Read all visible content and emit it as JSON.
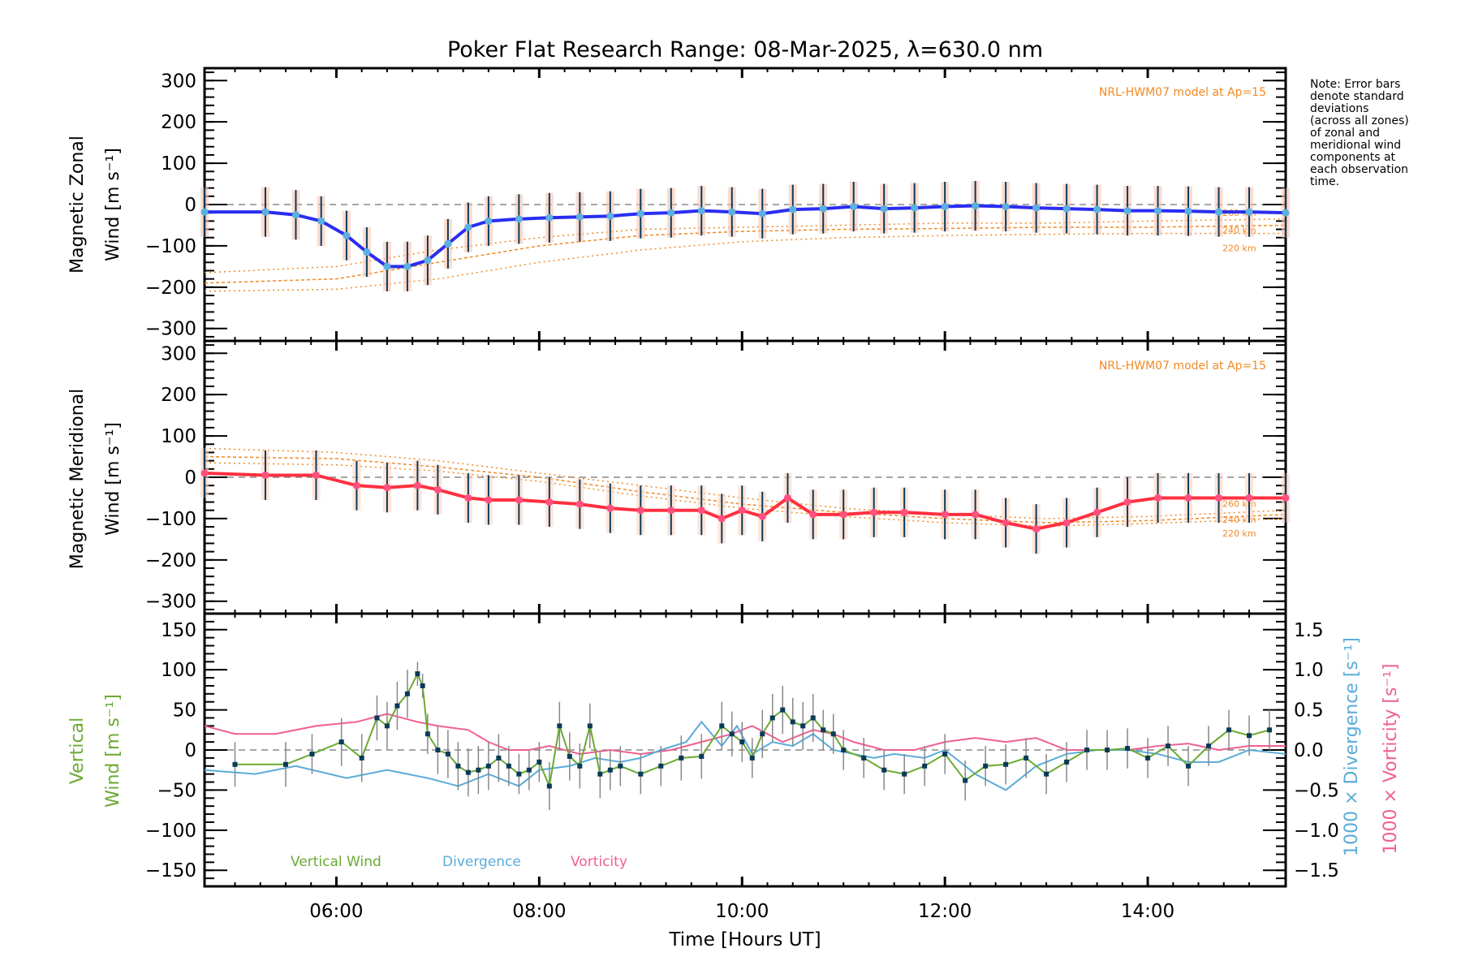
{
  "chart_data": [
    {
      "type": "line",
      "panel": "zonal",
      "title": "Poker Flat Research Range: 08-Mar-2025, λ=630.0 nm",
      "ylabel_line1": "Magnetic Zonal",
      "ylabel_line2": "Wind [m s⁻¹]",
      "ylim": [
        -330,
        330
      ],
      "yticks": [
        -300,
        -200,
        -100,
        0,
        100,
        200,
        300
      ],
      "xlim": [
        4.7,
        15.36
      ],
      "model_label": "NRL-HWM07 model at Ap=15",
      "series": [
        {
          "name": "Zonal wind",
          "color": "#2a2df0",
          "x": [
            4.7,
            5.3,
            5.6,
            5.85,
            6.1,
            6.3,
            6.5,
            6.7,
            6.9,
            7.1,
            7.3,
            7.5,
            7.8,
            8.1,
            8.4,
            8.7,
            9.0,
            9.3,
            9.6,
            9.9,
            10.2,
            10.5,
            10.8,
            11.1,
            11.4,
            11.7,
            12.0,
            12.3,
            12.6,
            12.9,
            13.2,
            13.5,
            13.8,
            14.1,
            14.4,
            14.7,
            15.0,
            15.36
          ],
          "y": [
            -18,
            -18,
            -25,
            -40,
            -75,
            -115,
            -150,
            -150,
            -135,
            -95,
            -55,
            -40,
            -35,
            -32,
            -30,
            -28,
            -22,
            -20,
            -15,
            -18,
            -22,
            -12,
            -10,
            -5,
            -10,
            -8,
            -5,
            -3,
            -5,
            -8,
            -10,
            -12,
            -15,
            -15,
            -16,
            -18,
            -18,
            -20
          ]
        }
      ],
      "model_curves": [
        {
          "name": "260 km",
          "x": [
            4.7,
            6.0,
            7.0,
            8.0,
            9.0,
            10.0,
            11.0,
            12.0,
            13.0,
            14.0,
            15.36
          ],
          "y": [
            -165,
            -150,
            -110,
            -80,
            -60,
            -55,
            -50,
            -45,
            -45,
            -40,
            -35
          ]
        },
        {
          "name": "240 km",
          "x": [
            4.7,
            6.0,
            7.0,
            8.0,
            9.0,
            10.0,
            11.0,
            12.0,
            13.0,
            14.0,
            15.36
          ],
          "y": [
            -190,
            -180,
            -140,
            -100,
            -75,
            -65,
            -60,
            -58,
            -55,
            -55,
            -50
          ]
        },
        {
          "name": "220 km",
          "x": [
            4.7,
            6.0,
            7.0,
            8.0,
            9.0,
            10.0,
            11.0,
            12.0,
            13.0,
            14.0,
            15.36
          ],
          "y": [
            -210,
            -205,
            -180,
            -140,
            -110,
            -90,
            -80,
            -75,
            -72,
            -70,
            -70
          ]
        }
      ]
    },
    {
      "type": "line",
      "panel": "meridional",
      "ylabel_line1": "Magnetic Meridional",
      "ylabel_line2": "Wind [m s⁻¹]",
      "ylim": [
        -330,
        330
      ],
      "yticks": [
        -300,
        -200,
        -100,
        0,
        100,
        200,
        300
      ],
      "xlim": [
        4.7,
        15.36
      ],
      "model_label": "NRL-HWM07 model at Ap=15",
      "series": [
        {
          "name": "Meridional wind",
          "color": "#ff3040",
          "x": [
            4.7,
            5.3,
            5.8,
            6.2,
            6.5,
            6.8,
            7.0,
            7.3,
            7.5,
            7.8,
            8.1,
            8.4,
            8.7,
            9.0,
            9.3,
            9.6,
            9.8,
            10.0,
            10.2,
            10.45,
            10.7,
            11.0,
            11.3,
            11.6,
            12.0,
            12.3,
            12.6,
            12.9,
            13.2,
            13.5,
            13.8,
            14.1,
            14.4,
            14.7,
            15.0,
            15.36
          ],
          "y": [
            10,
            5,
            5,
            -20,
            -25,
            -20,
            -30,
            -50,
            -55,
            -55,
            -60,
            -65,
            -75,
            -80,
            -80,
            -80,
            -100,
            -80,
            -95,
            -50,
            -90,
            -90,
            -85,
            -85,
            -90,
            -90,
            -110,
            -125,
            -110,
            -85,
            -60,
            -50,
            -50,
            -50,
            -50,
            -50
          ]
        }
      ],
      "model_curves": [
        {
          "name": "260 km",
          "x": [
            4.7,
            6.0,
            7.0,
            8.0,
            9.0,
            10.0,
            11.0,
            12.0,
            13.0,
            14.0,
            15.36
          ],
          "y": [
            70,
            60,
            40,
            10,
            -20,
            -50,
            -75,
            -90,
            -100,
            -95,
            -80
          ]
        },
        {
          "name": "240 km",
          "x": [
            4.7,
            6.0,
            7.0,
            8.0,
            9.0,
            10.0,
            11.0,
            12.0,
            13.0,
            14.0,
            15.36
          ],
          "y": [
            50,
            45,
            25,
            0,
            -35,
            -65,
            -85,
            -100,
            -110,
            -105,
            -90
          ]
        },
        {
          "name": "220 km",
          "x": [
            4.7,
            6.0,
            7.0,
            8.0,
            9.0,
            10.0,
            11.0,
            12.0,
            13.0,
            14.0,
            15.36
          ],
          "y": [
            35,
            30,
            15,
            -10,
            -45,
            -75,
            -95,
            -110,
            -118,
            -112,
            -100
          ]
        }
      ]
    },
    {
      "type": "line",
      "panel": "vertical",
      "xlabel": "Time [Hours UT]",
      "ylabel_line1": "Vertical",
      "ylabel_line2": "Wind [m s⁻¹]",
      "y2label_div": "1000 × Divergence [s⁻¹]",
      "y2label_vort": "1000 × Vorticity [s⁻¹]",
      "ylim": [
        -170,
        170
      ],
      "yticks": [
        -150,
        -100,
        -50,
        0,
        50,
        100,
        150
      ],
      "y2lim": [
        -1.7,
        1.7
      ],
      "y2ticks": [
        "-1.5",
        "-1.0",
        "-0.5",
        "0.0",
        "0.5",
        "1.0",
        "1.5"
      ],
      "xlim": [
        4.7,
        15.36
      ],
      "xticks": [
        "06:00",
        "08:00",
        "10:00",
        "12:00",
        "14:00"
      ],
      "xtick_values": [
        6,
        8,
        10,
        12,
        14
      ],
      "legend": [
        "Vertical Wind",
        "Divergence",
        "Vorticity"
      ],
      "series": [
        {
          "name": "Vertical Wind",
          "color": "#6aaa30",
          "x": [
            5.0,
            5.5,
            5.76,
            6.05,
            6.25,
            6.4,
            6.5,
            6.6,
            6.7,
            6.8,
            6.85,
            6.9,
            7.0,
            7.1,
            7.2,
            7.3,
            7.4,
            7.5,
            7.6,
            7.7,
            7.8,
            7.9,
            8.0,
            8.1,
            8.2,
            8.3,
            8.4,
            8.5,
            8.6,
            8.7,
            8.8,
            9.0,
            9.2,
            9.4,
            9.6,
            9.8,
            9.9,
            10.0,
            10.1,
            10.2,
            10.3,
            10.4,
            10.5,
            10.6,
            10.7,
            10.8,
            10.9,
            11.0,
            11.2,
            11.4,
            11.6,
            11.8,
            12.0,
            12.2,
            12.4,
            12.6,
            12.8,
            13.0,
            13.2,
            13.4,
            13.6,
            13.8,
            14.0,
            14.2,
            14.4,
            14.6,
            14.8,
            15.0,
            15.2
          ],
          "y": [
            -18,
            -18,
            -5,
            10,
            -10,
            40,
            30,
            55,
            70,
            95,
            80,
            20,
            0,
            -5,
            -20,
            -28,
            -25,
            -20,
            -10,
            -20,
            -30,
            -25,
            -15,
            -45,
            30,
            -8,
            -20,
            30,
            -30,
            -25,
            -20,
            -30,
            -20,
            -10,
            -8,
            30,
            20,
            10,
            -10,
            20,
            40,
            50,
            35,
            30,
            40,
            25,
            20,
            0,
            -10,
            -25,
            -30,
            -20,
            -5,
            -38,
            -20,
            -18,
            -10,
            -30,
            -15,
            0,
            0,
            2,
            -10,
            5,
            -20,
            5,
            25,
            18,
            25
          ],
          "errors": [
            28,
            28,
            25,
            30,
            30,
            28,
            30,
            30,
            30,
            15,
            15,
            25,
            30,
            30,
            30,
            30,
            30,
            30,
            30,
            25,
            25,
            25,
            25,
            30,
            30,
            30,
            28,
            28,
            30,
            25,
            25,
            25,
            25,
            28,
            28,
            30,
            28,
            25,
            25,
            30,
            30,
            30,
            30,
            30,
            30,
            25,
            25,
            25,
            25,
            25,
            25,
            25,
            25,
            25,
            25,
            25,
            25,
            25,
            25,
            25,
            25,
            25,
            25,
            25,
            25,
            25,
            25,
            25,
            25
          ]
        },
        {
          "name": "Divergence",
          "color": "#5aacd8",
          "axis": "right",
          "x": [
            4.7,
            5.2,
            5.6,
            6.1,
            6.5,
            6.9,
            7.2,
            7.5,
            7.8,
            8.0,
            8.3,
            8.55,
            8.8,
            9.0,
            9.2,
            9.45,
            9.6,
            9.8,
            9.95,
            10.1,
            10.3,
            10.5,
            10.7,
            10.9,
            11.1,
            11.3,
            11.5,
            11.8,
            12.0,
            12.3,
            12.6,
            12.9,
            13.2,
            13.5,
            13.8,
            14.1,
            14.4,
            14.7,
            15.0,
            15.36
          ],
          "y": [
            -0.25,
            -0.3,
            -0.2,
            -0.35,
            -0.25,
            -0.35,
            -0.45,
            -0.3,
            -0.45,
            -0.25,
            -0.2,
            -0.1,
            -0.15,
            -0.1,
            0.0,
            0.1,
            0.35,
            0.05,
            0.3,
            -0.05,
            0.1,
            0.05,
            0.2,
            0.0,
            -0.05,
            -0.1,
            -0.05,
            -0.1,
            0.0,
            -0.3,
            -0.5,
            -0.2,
            -0.05,
            0.0,
            0.0,
            -0.05,
            -0.15,
            -0.15,
            0.0,
            -0.05
          ]
        },
        {
          "name": "Vorticity",
          "color": "#f06090",
          "axis": "right",
          "x": [
            4.7,
            5.0,
            5.4,
            5.8,
            6.2,
            6.5,
            6.8,
            7.0,
            7.3,
            7.5,
            7.7,
            7.9,
            8.1,
            8.4,
            8.7,
            9.0,
            9.3,
            9.6,
            9.9,
            10.1,
            10.4,
            10.7,
            10.9,
            11.1,
            11.4,
            11.7,
            12.0,
            12.3,
            12.6,
            12.9,
            13.2,
            13.5,
            13.8,
            14.1,
            14.4,
            14.7,
            15.0,
            15.36
          ],
          "y": [
            0.3,
            0.2,
            0.2,
            0.3,
            0.35,
            0.45,
            0.35,
            0.3,
            0.25,
            0.1,
            0.0,
            0.0,
            0.05,
            -0.05,
            0.0,
            -0.05,
            0.0,
            0.1,
            0.2,
            0.3,
            0.1,
            0.25,
            0.2,
            0.1,
            0.0,
            0.0,
            0.1,
            0.15,
            0.1,
            0.15,
            0.0,
            0.0,
            0.0,
            0.05,
            0.08,
            0.0,
            0.05,
            0.05
          ]
        }
      ]
    }
  ],
  "note": [
    "Note: Error bars",
    "denote standard",
    "deviations",
    "(across all zones)",
    "of zonal and",
    "meridional wind",
    "components at",
    "each observation",
    "time."
  ],
  "altitude_labels": [
    "260 km",
    "240 km",
    "220 km"
  ]
}
